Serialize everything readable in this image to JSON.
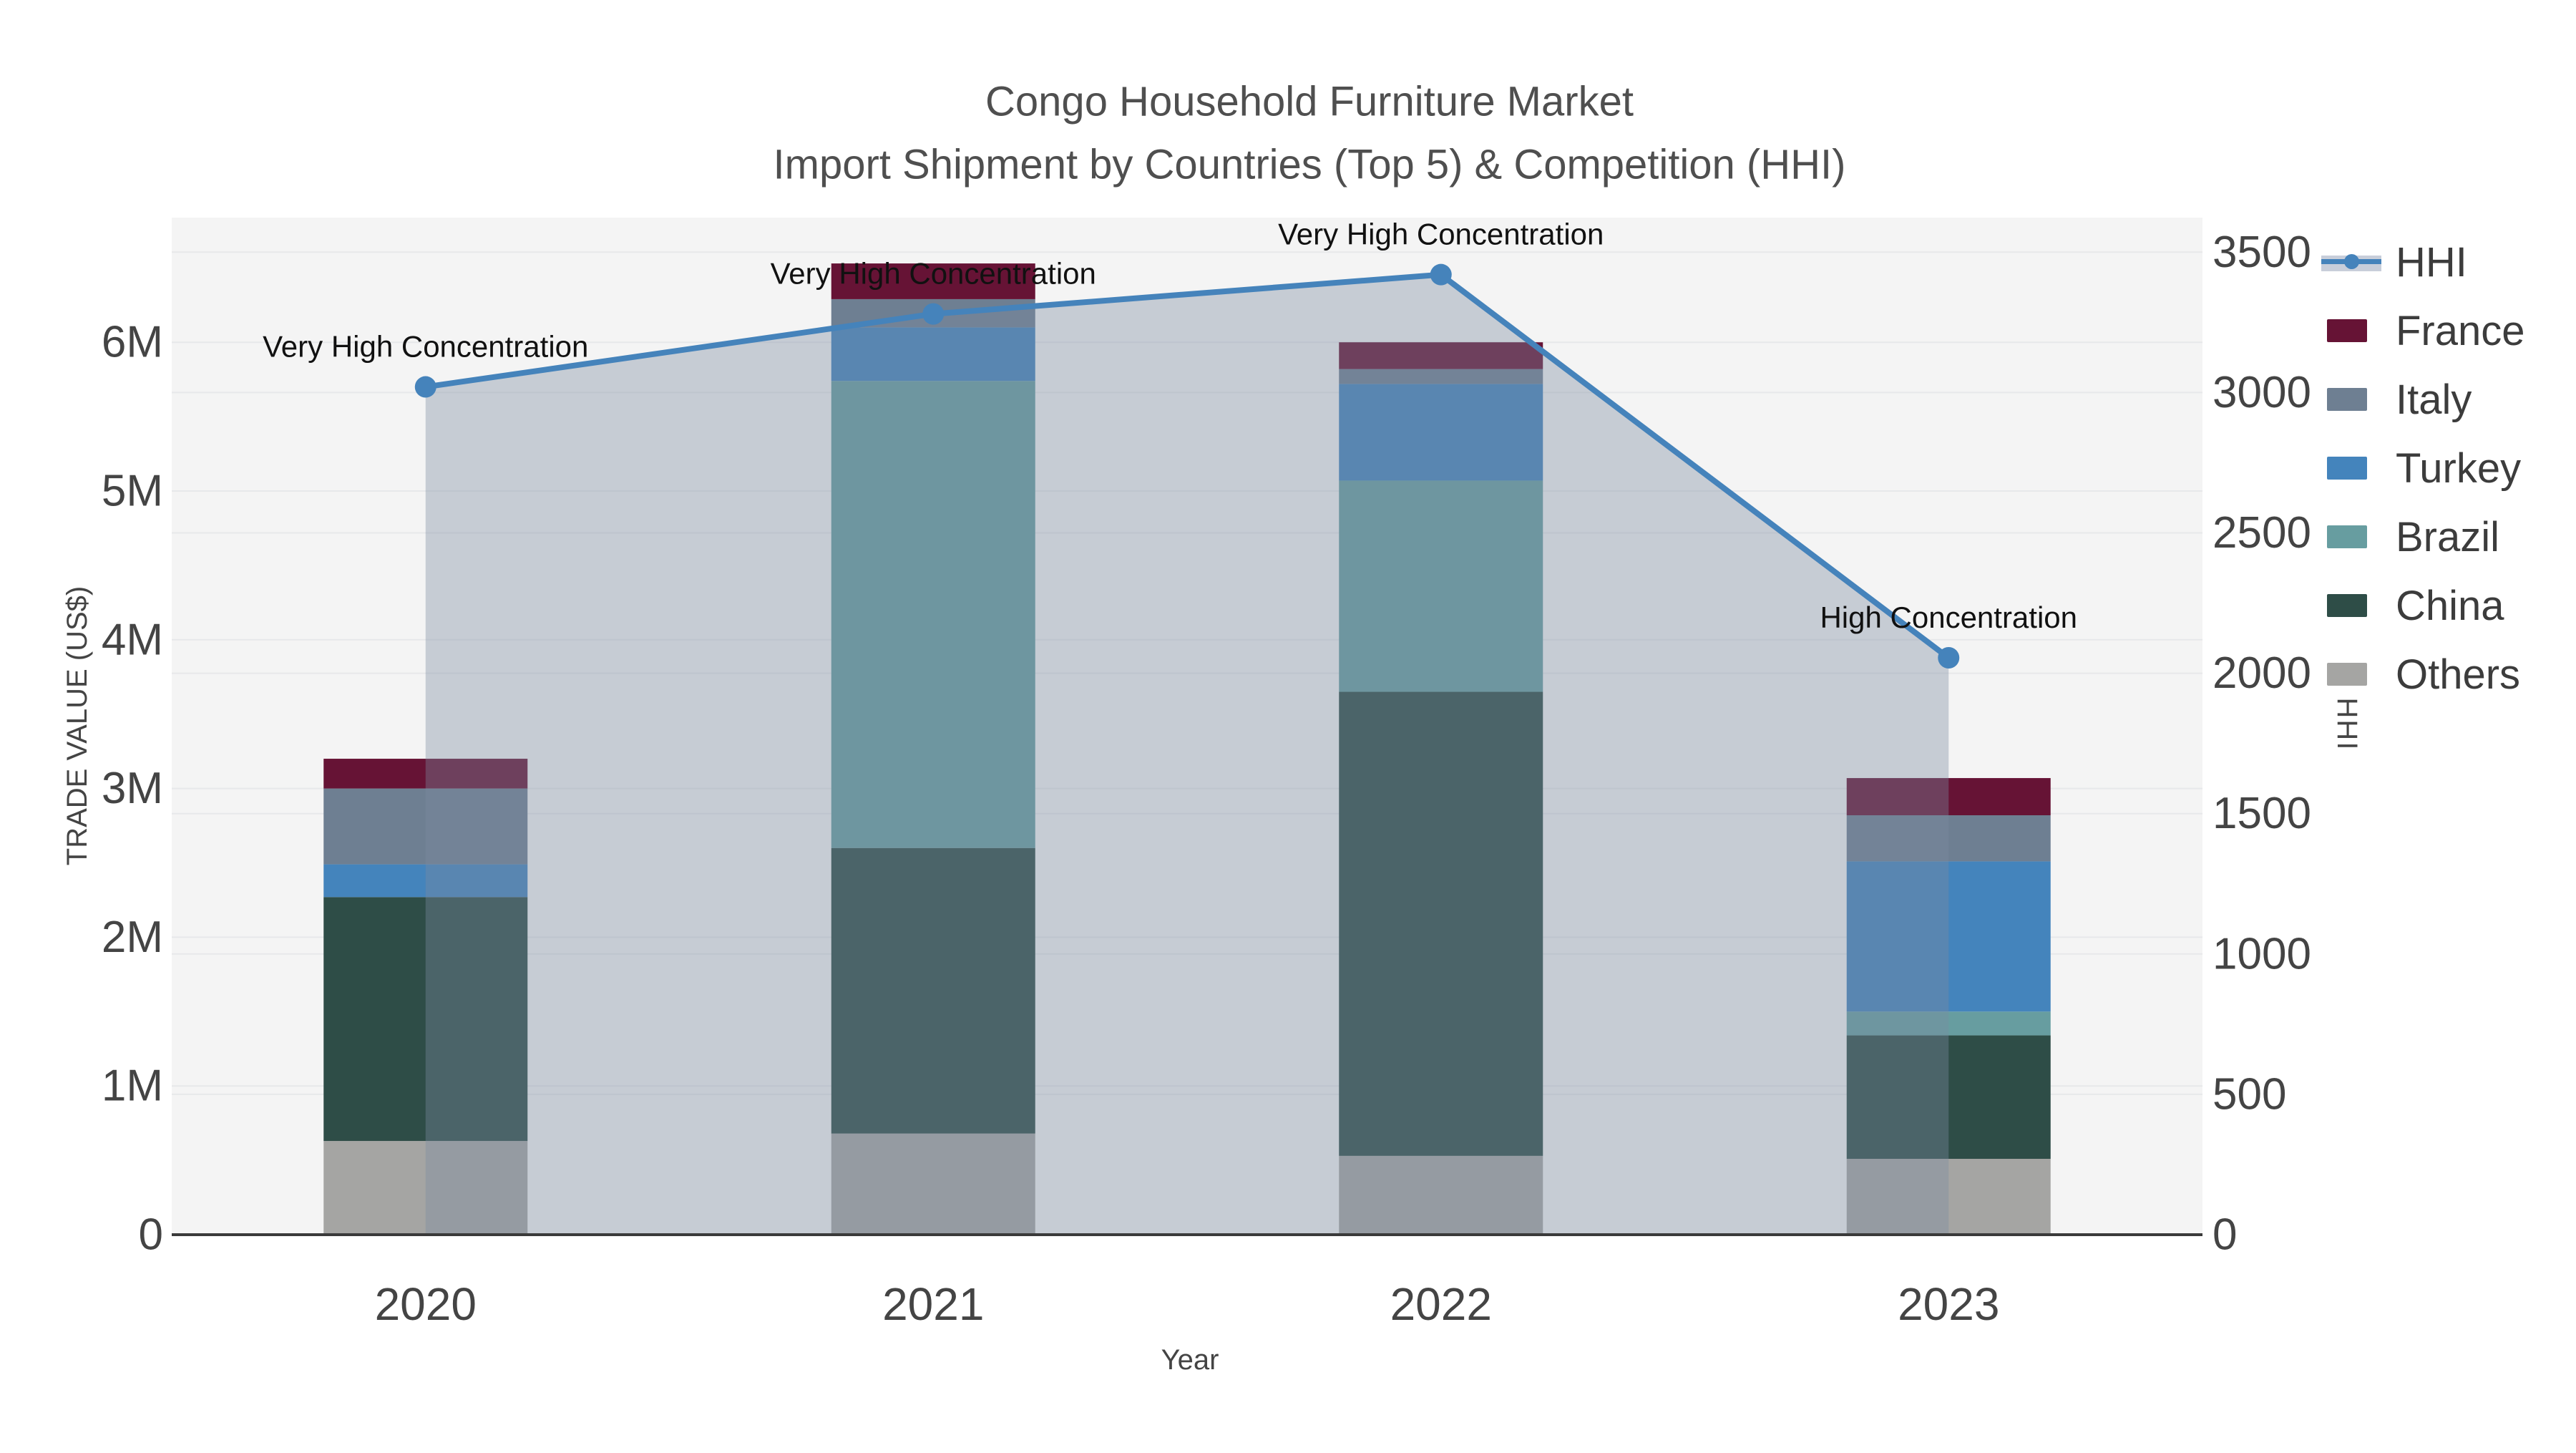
{
  "title": {
    "line1": "Congo Household Furniture Market",
    "line2": "Import Shipment by Countries (Top 5) & Competition (HHI)"
  },
  "axes": {
    "x_title": "Year",
    "y_left_title": "TRADE VALUE (US$)",
    "y_right_title": "HHI",
    "y_left_tick_labels": [
      "0",
      "1M",
      "2M",
      "3M",
      "4M",
      "5M",
      "6M"
    ],
    "y_right_tick_labels": [
      "0",
      "500",
      "1000",
      "1500",
      "2000",
      "2500",
      "3000",
      "3500"
    ]
  },
  "legend": {
    "items": [
      {
        "label": "HHI",
        "type": "line",
        "color": "#4583bb"
      },
      {
        "label": "France",
        "type": "box",
        "color": "#661335"
      },
      {
        "label": "Italy",
        "type": "box",
        "color": "#6e7f92"
      },
      {
        "label": "Turkey",
        "type": "box",
        "color": "#4484bc"
      },
      {
        "label": "Brazil",
        "type": "box",
        "color": "#679da0"
      },
      {
        "label": "China",
        "type": "box",
        "color": "#2e4d47"
      },
      {
        "label": "Others",
        "type": "box",
        "color": "#a5a5a3"
      }
    ]
  },
  "chart_data": {
    "type": "stacked-bar+line",
    "categories": [
      "2020",
      "2021",
      "2022",
      "2023"
    ],
    "bar_unit": "US$",
    "series": [
      {
        "name": "Others",
        "color": "#a5a5a3",
        "values": [
          630000,
          680000,
          530000,
          510000
        ]
      },
      {
        "name": "China",
        "color": "#2e4d47",
        "values": [
          1640000,
          1920000,
          3120000,
          830000
        ]
      },
      {
        "name": "Brazil",
        "color": "#679da0",
        "values": [
          0,
          3140000,
          1420000,
          160000
        ]
      },
      {
        "name": "Turkey",
        "color": "#4484bc",
        "values": [
          220000,
          360000,
          650000,
          1010000
        ]
      },
      {
        "name": "Italy",
        "color": "#6e7f92",
        "values": [
          510000,
          190000,
          100000,
          310000
        ]
      },
      {
        "name": "France",
        "color": "#661335",
        "values": [
          200000,
          240000,
          180000,
          250000
        ]
      }
    ],
    "bar_totals": [
      3200000,
      6530000,
      6000000,
      3070000
    ],
    "line_series": {
      "name": "HHI",
      "color": "#4583bb",
      "values": [
        3020,
        3280,
        3420,
        2055
      ]
    },
    "annotations": [
      "Very High Concentration",
      "Very High Concentration",
      "Very High Concentration",
      "High Concentration"
    ],
    "xlabel": "Year",
    "ylabel_left": "TRADE VALUE (US$)",
    "ylabel_right": "HHI",
    "ylim_left": [
      0,
      6840000
    ],
    "ylim_right": [
      0,
      3500
    ],
    "grid": true,
    "legend_position": "right"
  },
  "colors": {
    "plot_bg": "#f4f4f4",
    "page_bg": "#ffffff",
    "grid": "#e7e8ea",
    "axis_line": "#3a3a3a",
    "tick_text": "#444444",
    "title_text": "#4f4f4f",
    "annotation_text": "#111111",
    "area_fill": "rgba(124,140,161,0.38)",
    "hhi_line": "#4583bb"
  }
}
